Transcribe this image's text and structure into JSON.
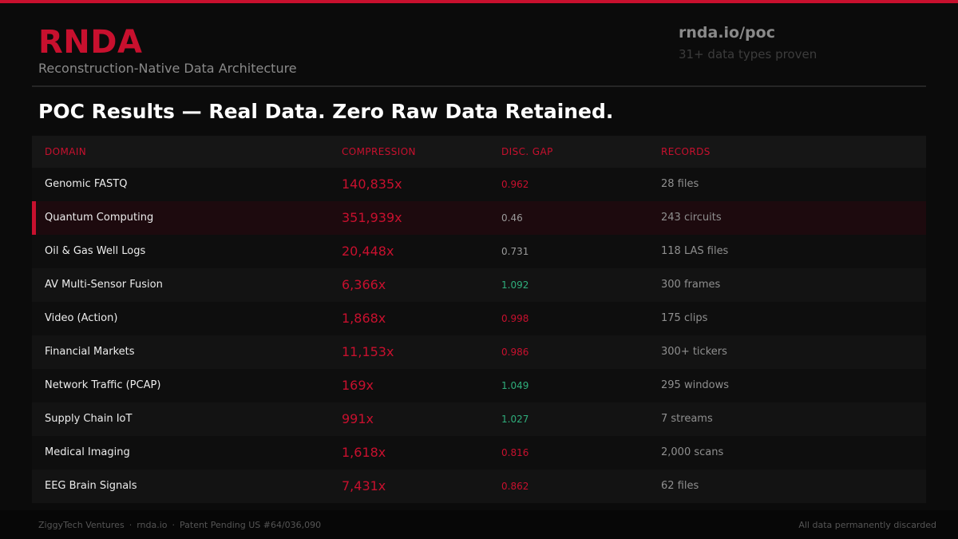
{
  "brand": {
    "title": "RNDA",
    "subtitle": "Reconstruction-Native Data Architecture",
    "url": "rnda.io/poc",
    "tagline": "31+ data types proven"
  },
  "headline": "POC Results — Real Data. Zero Raw Data Retained.",
  "table": {
    "headers": [
      "DOMAIN",
      "COMPRESSION",
      "DISC. GAP",
      "RECORDS"
    ],
    "rows": [
      {
        "domain": "Genomic FASTQ",
        "compression": "140,835x",
        "gap": "0.962",
        "records": "28 files",
        "gap_color": "#c8102e",
        "highlight": false
      },
      {
        "domain": "Quantum Computing",
        "compression": "351,939x",
        "gap": "0.46",
        "records": "243 circuits",
        "gap_color": "#9a9a9a",
        "highlight": true
      },
      {
        "domain": "Oil & Gas Well Logs",
        "compression": "20,448x",
        "gap": "0.731",
        "records": "118 LAS files",
        "gap_color": "#9a9a9a",
        "highlight": false
      },
      {
        "domain": "AV Multi-Sensor Fusion",
        "compression": "6,366x",
        "gap": "1.092",
        "records": "300 frames",
        "gap_color": "#2fae7c",
        "highlight": false
      },
      {
        "domain": "Video (Action)",
        "compression": "1,868x",
        "gap": "0.998",
        "records": "175 clips",
        "gap_color": "#c8102e",
        "highlight": false
      },
      {
        "domain": "Financial Markets",
        "compression": "11,153x",
        "gap": "0.986",
        "records": "300+ tickers",
        "gap_color": "#c8102e",
        "highlight": false
      },
      {
        "domain": "Network Traffic (PCAP)",
        "compression": "169x",
        "gap": "1.049",
        "records": "295 windows",
        "gap_color": "#2fae7c",
        "highlight": false
      },
      {
        "domain": "Supply Chain IoT",
        "compression": "991x",
        "gap": "1.027",
        "records": "7 streams",
        "gap_color": "#2fae7c",
        "highlight": false
      },
      {
        "domain": "Medical Imaging",
        "compression": "1,618x",
        "gap": "0.816",
        "records": "2,000 scans",
        "gap_color": "#c8102e",
        "highlight": false
      },
      {
        "domain": "EEG Brain Signals",
        "compression": "7,431x",
        "gap": "0.862",
        "records": "62 files",
        "gap_color": "#c8102e",
        "highlight": false
      }
    ]
  },
  "footer": {
    "company": "ZiggyTech Ventures",
    "site": "rnda.io",
    "patent": "Patent Pending US #64/036,090",
    "separator": "·",
    "right": "All data permanently discarded"
  },
  "colors": {
    "accent": "#c8102e",
    "positive": "#2fae7c",
    "neutral": "#9a9a9a"
  }
}
